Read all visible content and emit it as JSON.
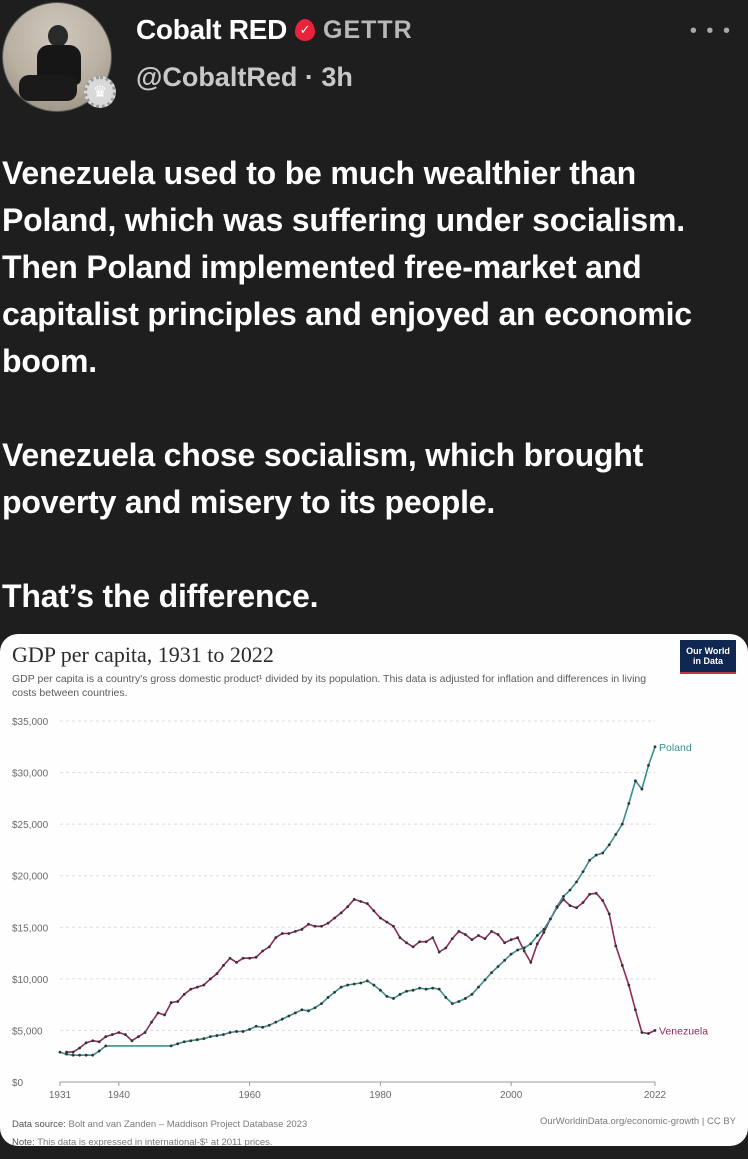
{
  "post": {
    "author": {
      "display_name": "Cobalt RED",
      "verified_icon": "flame-check-icon",
      "platform": "GETTR",
      "handle": "@CobaltRed",
      "separator": "·",
      "time_ago": "3h"
    },
    "more_menu_label": "• • •",
    "paragraphs": [
      "Venezuela used to be much wealthier than Poland, which was suffering under socialism. Then Poland implemented free-market and capitalist principles and enjoyed an economic boom.",
      "Venezuela chose socialism, which brought poverty and misery to its people.",
      "That’s the difference."
    ]
  },
  "chart_card": {
    "title": "GDP per capita, 1931 to 2022",
    "subtitle": "GDP per capita is a country's gross domestic product¹ divided by its population. This data is adjusted for inflation and differences in living costs between countries.",
    "logo_line1": "Our World",
    "logo_line2": "in Data",
    "source_label": "Data source:",
    "source_text": "Bolt and van Zanden – Maddison Project Database 2023",
    "note_label": "Note:",
    "note_text": "This data is expressed in international-$¹ at 2011 prices.",
    "attribution": "OurWorldinData.org/economic-growth | CC BY"
  },
  "chart_data": {
    "type": "line",
    "title": "GDP per capita, 1931 to 2022",
    "subtitle": "GDP per capita is a country's gross domestic product divided by its population. This data is adjusted for inflation and differences in living costs between countries.",
    "xlabel": "",
    "ylabel": "",
    "xlim": [
      1931,
      2022
    ],
    "ylim": [
      0,
      35000
    ],
    "x_ticks": [
      "1931",
      "1940",
      "1960",
      "1980",
      "2000",
      "2022"
    ],
    "y_ticks": [
      "$0",
      "$5,000",
      "$10,000",
      "$15,000",
      "$20,000",
      "$25,000",
      "$30,000",
      "$35,000"
    ],
    "grid": "horizontal dashed",
    "legend": "inline labels at line ends",
    "colors": {
      "Poland": "#3b8e8e",
      "Venezuela": "#8c2a5c"
    },
    "series": [
      {
        "name": "Venezuela",
        "x": [
          1932,
          1933,
          1934,
          1935,
          1936,
          1937,
          1938,
          1939,
          1940,
          1941,
          1942,
          1943,
          1944,
          1945,
          1946,
          1947,
          1948,
          1949,
          1950,
          1951,
          1952,
          1953,
          1954,
          1955,
          1956,
          1957,
          1958,
          1959,
          1960,
          1961,
          1962,
          1963,
          1964,
          1965,
          1966,
          1967,
          1968,
          1969,
          1970,
          1971,
          1972,
          1973,
          1974,
          1975,
          1976,
          1977,
          1978,
          1979,
          1980,
          1981,
          1982,
          1983,
          1984,
          1985,
          1986,
          1987,
          1988,
          1989,
          1990,
          1991,
          1992,
          1993,
          1994,
          1995,
          1996,
          1997,
          1998,
          1999,
          2000,
          2001,
          2002,
          2003,
          2004,
          2005,
          2006,
          2007,
          2008,
          2009,
          2010,
          2011,
          2012,
          2013,
          2014,
          2015,
          2016,
          2017,
          2018,
          2019,
          2020,
          2021,
          2022
        ],
        "values": [
          2900,
          2900,
          3300,
          3800,
          4000,
          3900,
          4400,
          4600,
          4800,
          4600,
          4000,
          4400,
          4800,
          5800,
          6700,
          6500,
          7700,
          7800,
          8500,
          9000,
          9200,
          9400,
          10000,
          10500,
          11300,
          12000,
          11600,
          12000,
          12000,
          12100,
          12700,
          13100,
          14000,
          14400,
          14400,
          14600,
          14800,
          15300,
          15100,
          15100,
          15400,
          15900,
          16400,
          17000,
          17700,
          17500,
          17300,
          16600,
          15900,
          15500,
          15100,
          14000,
          13500,
          13100,
          13600,
          13600,
          14000,
          12600,
          13000,
          13900,
          14600,
          14300,
          13800,
          14200,
          13900,
          14600,
          14300,
          13500,
          13800,
          14000,
          12700,
          11600,
          13400,
          14500,
          15800,
          16900,
          17700,
          17100,
          16900,
          17400,
          18200,
          18300,
          17600,
          16300,
          13200,
          11300,
          9400,
          7000,
          4800,
          4700,
          5000
        ]
      },
      {
        "name": "Poland",
        "x": [
          1931,
          1932,
          1933,
          1934,
          1935,
          1936,
          1937,
          1938,
          1948,
          1949,
          1950,
          1951,
          1952,
          1953,
          1954,
          1955,
          1956,
          1957,
          1958,
          1959,
          1960,
          1961,
          1962,
          1963,
          1964,
          1965,
          1966,
          1967,
          1968,
          1969,
          1970,
          1971,
          1972,
          1973,
          1974,
          1975,
          1976,
          1977,
          1978,
          1979,
          1980,
          1981,
          1982,
          1983,
          1984,
          1985,
          1986,
          1987,
          1988,
          1989,
          1990,
          1991,
          1992,
          1993,
          1994,
          1995,
          1996,
          1997,
          1998,
          1999,
          2000,
          2001,
          2002,
          2003,
          2004,
          2005,
          2006,
          2007,
          2008,
          2009,
          2010,
          2011,
          2012,
          2013,
          2014,
          2015,
          2016,
          2017,
          2018,
          2019,
          2020,
          2021,
          2022
        ],
        "values": [
          2900,
          2700,
          2600,
          2600,
          2600,
          2600,
          3000,
          3500,
          3500,
          3700,
          3900,
          4000,
          4100,
          4200,
          4400,
          4500,
          4600,
          4800,
          4900,
          4900,
          5100,
          5400,
          5300,
          5500,
          5800,
          6100,
          6400,
          6700,
          7000,
          6900,
          7200,
          7600,
          8200,
          8700,
          9200,
          9400,
          9500,
          9600,
          9800,
          9400,
          8900,
          8300,
          8100,
          8500,
          8800,
          8900,
          9100,
          9000,
          9100,
          9000,
          8200,
          7600,
          7800,
          8100,
          8500,
          9200,
          9900,
          10600,
          11200,
          11800,
          12400,
          12800,
          13000,
          13400,
          14200,
          14800,
          15800,
          17000,
          18000,
          18600,
          19400,
          20400,
          21500,
          22000,
          22200,
          23000,
          24000,
          25000,
          27000,
          29200,
          28400,
          30700,
          32500
        ]
      }
    ]
  }
}
